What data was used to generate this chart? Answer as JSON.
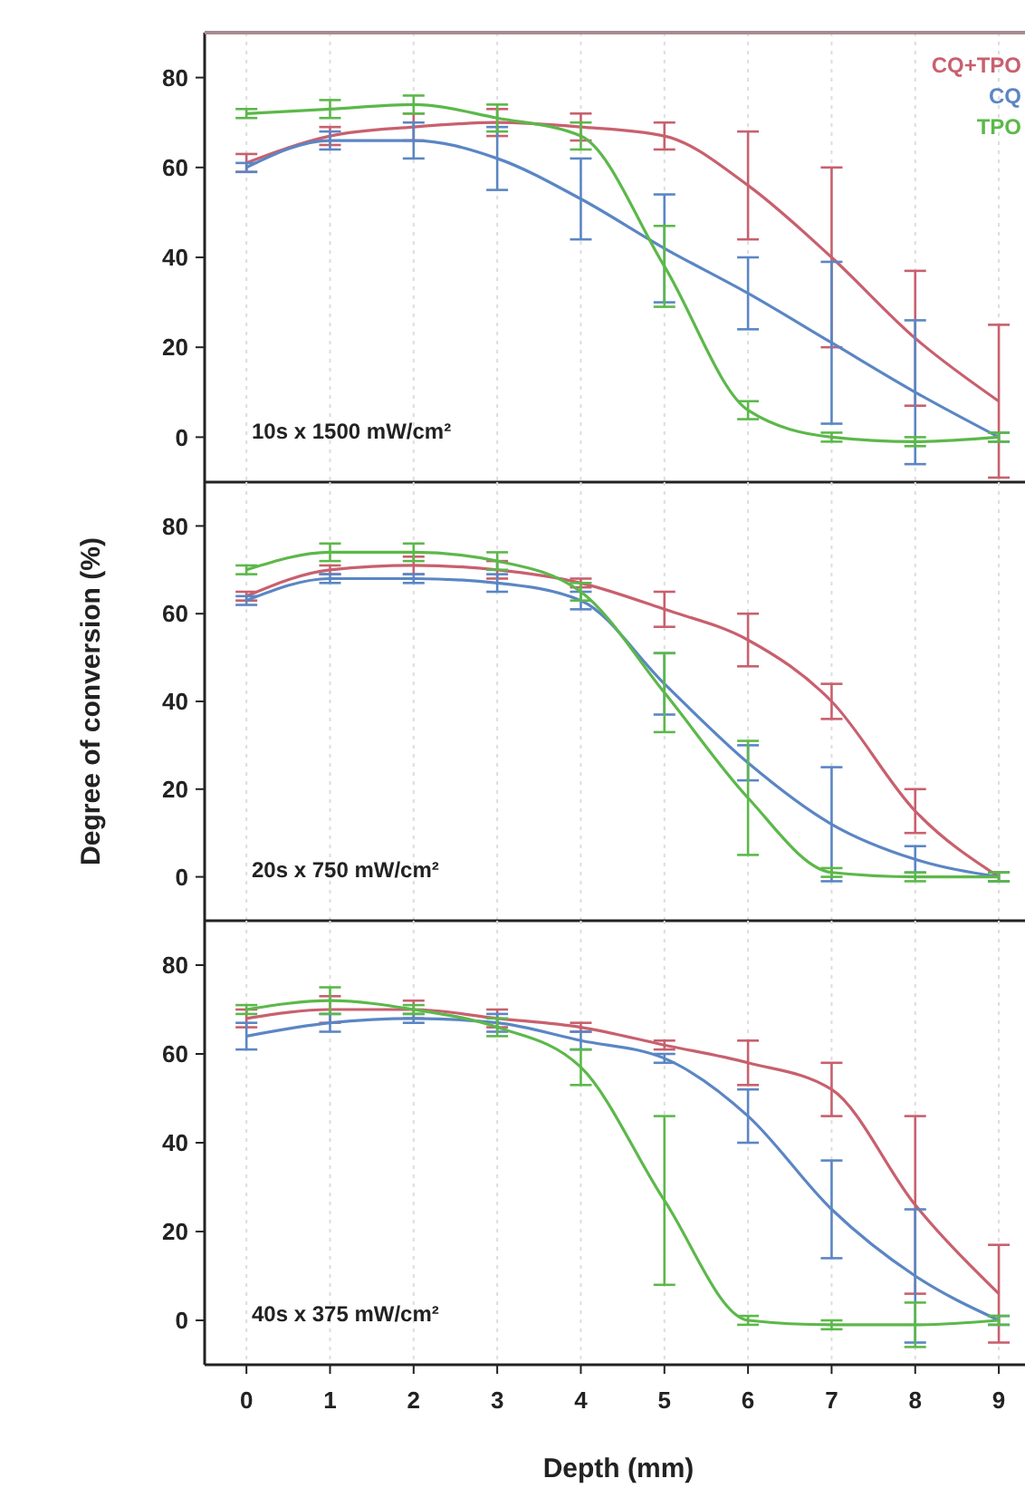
{
  "chart_data": [
    {
      "type": "line",
      "annotations": [
        "10s x 1500 mW/cm²"
      ],
      "x": [
        0,
        1,
        2,
        3,
        4,
        5,
        6,
        7,
        8,
        9
      ],
      "xlim": [
        -0.5,
        9.4
      ],
      "xticks": [
        0,
        1,
        2,
        3,
        4,
        5,
        6,
        7,
        8,
        9
      ],
      "ylim": [
        -10,
        90
      ],
      "yticks": [
        0,
        20,
        40,
        60,
        80
      ],
      "grid": "x",
      "legend": "top right",
      "tick_labels": "y",
      "marker": "none",
      "line_style": "solid",
      "series": [
        {
          "name": "CQ+TPO",
          "color": "#c8606e",
          "values": [
            61,
            67,
            69,
            70,
            69,
            67,
            56,
            40,
            22,
            8
          ],
          "errors": [
            2,
            2,
            3,
            3,
            3,
            3,
            12,
            20,
            15,
            17
          ]
        },
        {
          "name": "CQ",
          "color": "#5b86c4",
          "values": [
            60,
            66,
            66,
            62,
            53,
            42,
            32,
            21,
            10,
            0
          ],
          "errors": [
            1,
            2,
            4,
            7,
            9,
            12,
            8,
            18,
            16,
            1
          ]
        },
        {
          "name": "TPO",
          "color": "#5cb84a",
          "values": [
            72,
            73,
            74,
            71,
            67,
            38,
            6,
            0,
            -1,
            0
          ],
          "errors": [
            1,
            2,
            2,
            3,
            3,
            9,
            2,
            1,
            1,
            1
          ]
        }
      ]
    },
    {
      "type": "line",
      "annotations": [
        "20s x 750 mW/cm²"
      ],
      "ylabel": "Degree of conversion (%)",
      "x": [
        0,
        1,
        2,
        3,
        4,
        5,
        6,
        7,
        8,
        9
      ],
      "xlim": [
        -0.5,
        9.4
      ],
      "xticks": [
        0,
        1,
        2,
        3,
        4,
        5,
        6,
        7,
        8,
        9
      ],
      "ylim": [
        -10,
        90
      ],
      "yticks": [
        0,
        20,
        40,
        60,
        80
      ],
      "grid": "x",
      "tick_labels": "y",
      "marker": "none",
      "line_style": "solid",
      "series": [
        {
          "color": "#c8606e",
          "values": [
            64,
            70,
            71,
            70,
            67,
            61,
            54,
            40,
            15,
            0
          ],
          "errors": [
            1,
            1,
            2,
            2,
            1,
            4,
            6,
            4,
            5,
            1
          ]
        },
        {
          "color": "#5b86c4",
          "values": [
            63,
            68,
            68,
            67,
            63,
            44,
            26,
            12,
            4,
            0
          ],
          "errors": [
            1,
            1,
            1,
            2,
            2,
            7,
            4,
            13,
            3,
            1
          ]
        },
        {
          "color": "#5cb84a",
          "values": [
            70,
            74,
            74,
            72,
            65,
            42,
            18,
            1,
            0,
            0
          ],
          "errors": [
            1,
            2,
            2,
            2,
            2,
            9,
            13,
            1,
            1,
            1
          ]
        }
      ]
    },
    {
      "type": "line",
      "annotations": [
        "40s x 375 mW/cm²"
      ],
      "xlabel": "Depth (mm)",
      "x": [
        0,
        1,
        2,
        3,
        4,
        5,
        6,
        7,
        8,
        9
      ],
      "xlim": [
        -0.5,
        9.4
      ],
      "xticks": [
        0,
        1,
        2,
        3,
        4,
        5,
        6,
        7,
        8,
        9
      ],
      "ylim": [
        -10,
        90
      ],
      "yticks": [
        0,
        20,
        40,
        60,
        80
      ],
      "grid": "x",
      "marker": "none",
      "line_style": "solid",
      "series": [
        {
          "color": "#c8606e",
          "values": [
            68,
            70,
            70,
            68,
            66,
            62,
            58,
            52,
            26,
            6
          ],
          "errors": [
            2,
            3,
            2,
            2,
            1,
            1,
            5,
            6,
            20,
            11
          ]
        },
        {
          "color": "#5b86c4",
          "values": [
            64,
            67,
            68,
            67,
            63,
            59,
            46,
            25,
            10,
            0
          ],
          "errors": [
            3,
            2,
            1,
            2,
            2,
            1,
            6,
            11,
            15,
            1
          ]
        },
        {
          "color": "#5cb84a",
          "values": [
            70,
            72,
            70,
            66,
            57,
            27,
            0,
            -1,
            -1,
            0
          ],
          "errors": [
            1,
            3,
            1,
            2,
            4,
            19,
            1,
            1,
            5,
            1
          ]
        }
      ]
    }
  ]
}
